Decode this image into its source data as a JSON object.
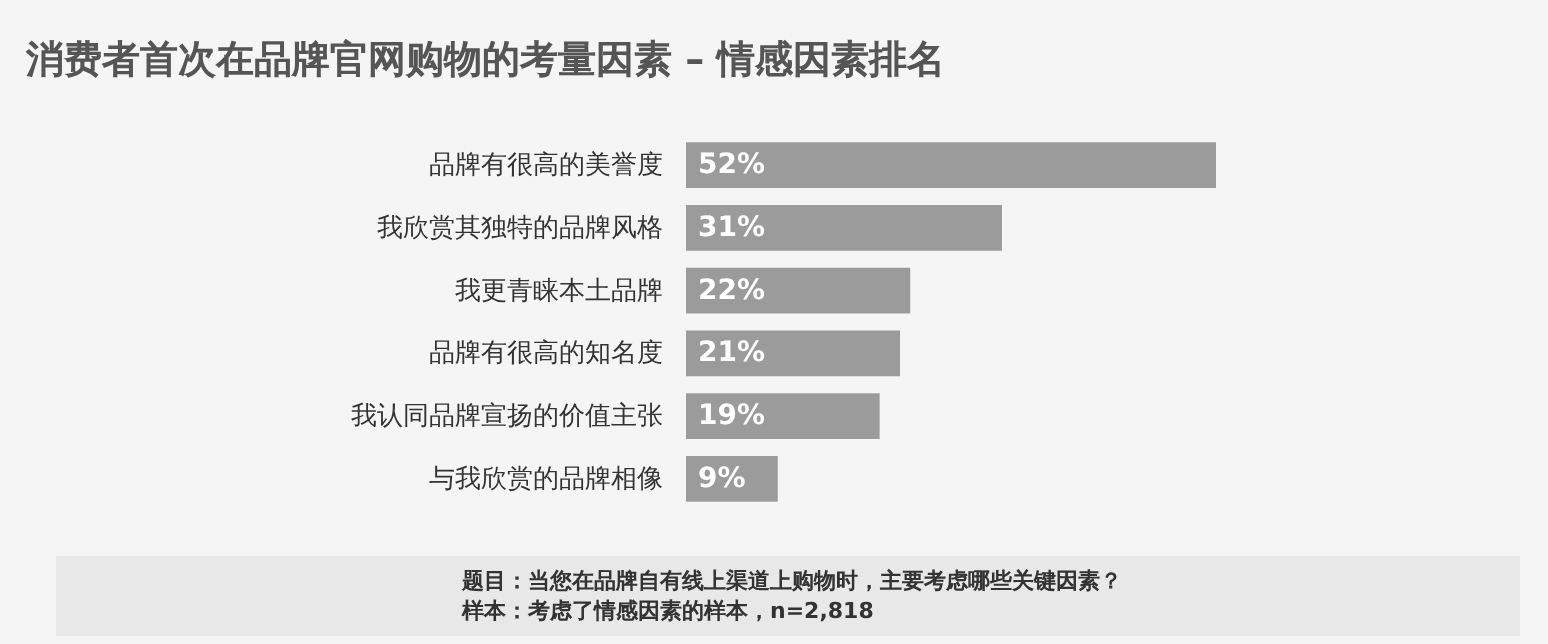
{
  "chart_data": {
    "type": "bar",
    "orientation": "horizontal",
    "title": "消费者首次在品牌官网购物的考量因素 – 情感因素排名",
    "categories": [
      "品牌有很高的美誉度",
      "我欣赏其独特的品牌风格",
      "我更青睐本土品牌",
      "品牌有很高的知名度",
      "我认同品牌宣扬的价值主张",
      "与我欣赏的品牌相像"
    ],
    "values": [
      52,
      31,
      22,
      21,
      19,
      9
    ],
    "value_labels": [
      "52%",
      "31%",
      "22%",
      "21%",
      "19%",
      "9%"
    ],
    "color": "#9b9b9b",
    "annotations": [
      "题目：当您在品牌自有线上渠道上购物时，主要考虑哪些关键因素？",
      "样本：考虑了情感因素的样本，n=2,818"
    ]
  }
}
